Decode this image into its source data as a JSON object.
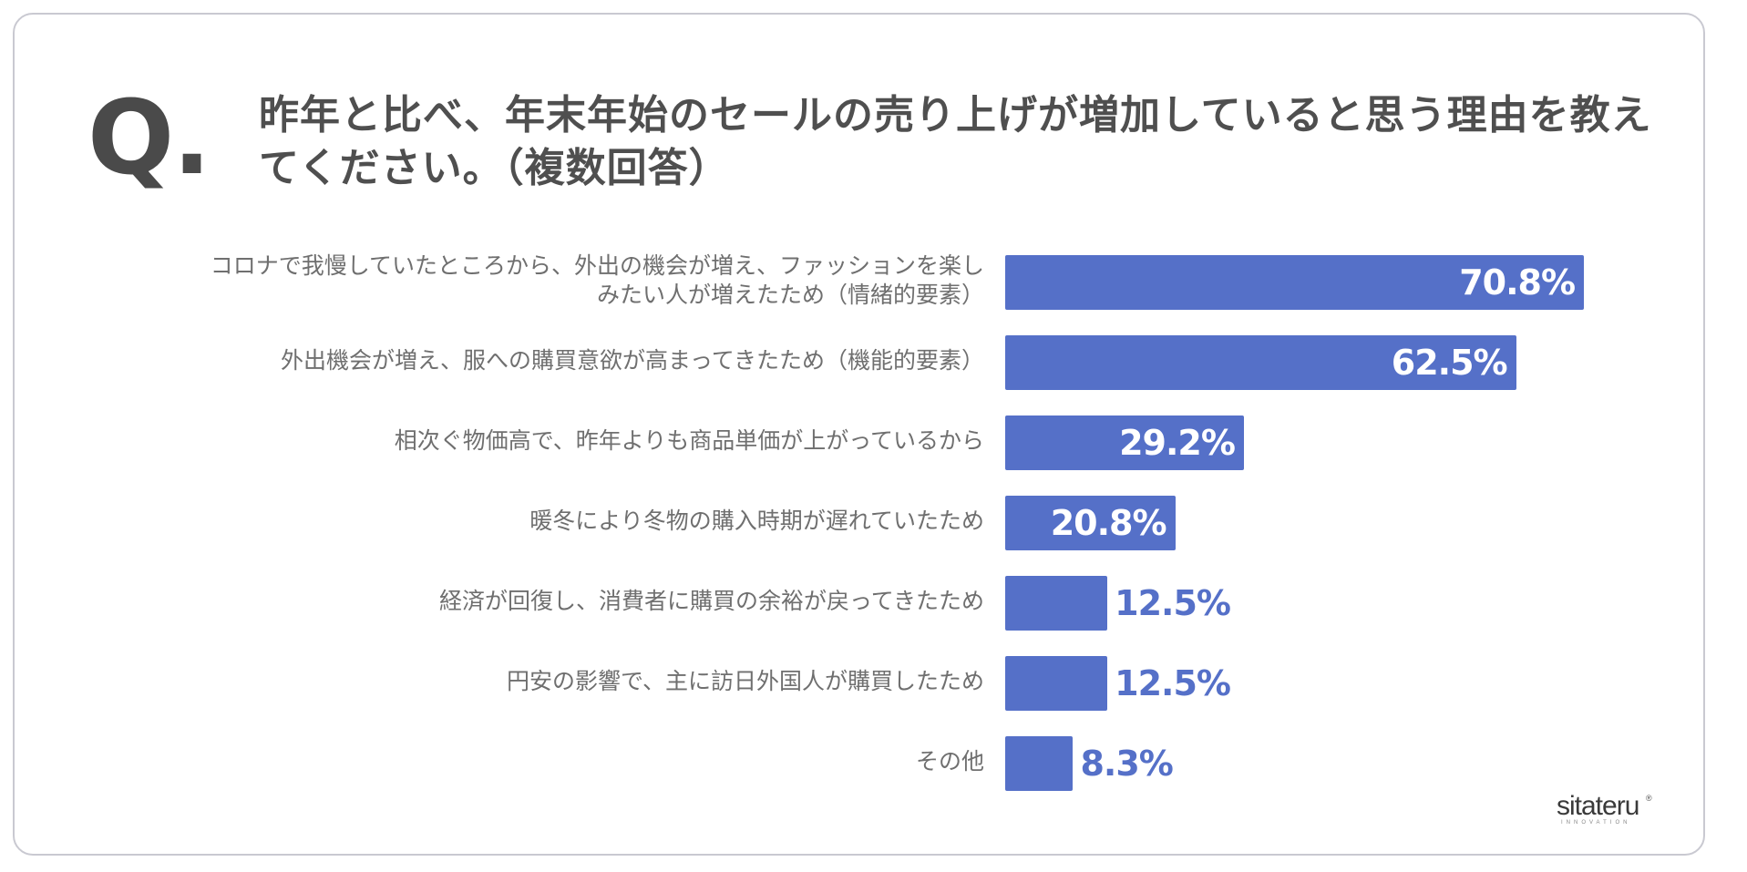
{
  "question_mark": "Q.",
  "title": "昨年と比べ、年末年始のセールの売り上げが増加していると思う理由を教えてください。（複数回答）",
  "logo": {
    "name": "sitateru",
    "tagline": "INNOVATION",
    "mark": "®"
  },
  "colors": {
    "bar": "#5570c8",
    "label": "#6f6f6f",
    "title": "#4f4f4f"
  },
  "chart_data": {
    "type": "bar",
    "orientation": "horizontal",
    "title": "昨年と比べ、年末年始のセールの売り上げが増加していると思う理由を教えてください。（複数回答）",
    "categories": [
      "コロナで我慢していたところから、外出の機会が増え、ファッションを楽しみたい人が増えたため（情緒的要素）",
      "外出機会が増え、服への購買意欲が高まってきたため（機能的要素）",
      "相次ぐ物価高で、昨年よりも商品単価が上がっているから",
      "暖冬により冬物の購入時期が遅れていたため",
      "経済が回復し、消費者に購買の余裕が戻ってきたため",
      "円安の影響で、主に訪日外国人が購買したため",
      "その他"
    ],
    "category_lines": [
      [
        "コロナで我慢していたところから、外出の機会が増え、ファッションを楽し",
        "みたい人が増えたため（情緒的要素）"
      ],
      [
        "外出機会が増え、服への購買意欲が高まってきたため（機能的要素）"
      ],
      [
        "相次ぐ物価高で、昨年よりも商品単価が上がっているから"
      ],
      [
        "暖冬により冬物の購入時期が遅れていたため"
      ],
      [
        "経済が回復し、消費者に購買の余裕が戻ってきたため"
      ],
      [
        "円安の影響で、主に訪日外国人が購買したため"
      ],
      [
        "その他"
      ]
    ],
    "values": [
      70.8,
      62.5,
      29.2,
      20.8,
      12.5,
      12.5,
      8.3
    ],
    "value_labels": [
      "70.8%",
      "62.5%",
      "29.2%",
      "20.8%",
      "12.5%",
      "12.5%",
      "8.3%"
    ],
    "unit": "%",
    "xlim": [
      0,
      100
    ],
    "grid": false,
    "legend": "none"
  }
}
